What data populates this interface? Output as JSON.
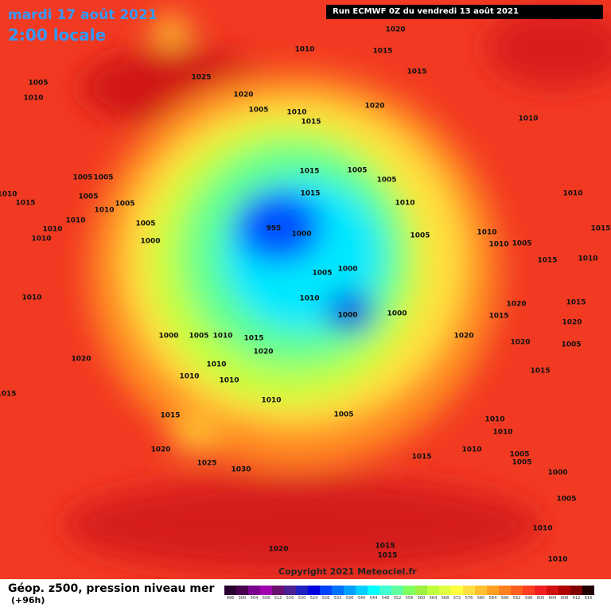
{
  "header": {
    "date": "mardi 17 août 2021",
    "time": "2:00 locale",
    "run": "Run ECMWF 0Z du vendredi 13 août 2021"
  },
  "pressure_labels": [
    "1020",
    "1015",
    "1010",
    "1015",
    "1025",
    "1020",
    "1005",
    "1010",
    "1005",
    "1010",
    "1015",
    "1020",
    "1010",
    "1015",
    "1005",
    "1005",
    "1005",
    "1005",
    "1005",
    "1010",
    "1015",
    "1010",
    "1005",
    "1010",
    "1010",
    "1010",
    "1005",
    "1000",
    "1015",
    "1010",
    "995",
    "1000",
    "1005",
    "1010",
    "1010",
    "1010",
    "1005",
    "1010",
    "1015",
    "1015",
    "1005",
    "1000",
    "1010",
    "1000",
    "1000",
    "1020",
    "1015",
    "1015",
    "1020",
    "1010",
    "1005",
    "1010",
    "1000",
    "1015",
    "1020",
    "1020",
    "1010",
    "1010",
    "1010",
    "1020",
    "1020",
    "1005",
    "1015",
    "1010",
    "1015",
    "1005",
    "1010",
    "1010",
    "1020",
    "1025",
    "1030",
    "1015",
    "1010",
    "1005",
    "1005",
    "1000",
    "1005",
    "1010",
    "1020",
    "1015",
    "1015",
    "1010",
    "1015"
  ],
  "footer": {
    "copyright": "Copyright 2021 Meteociel.fr",
    "legend_title": "Géop. z500, pression niveau mer",
    "lead": "(+96h)"
  },
  "legend": {
    "values": [
      496,
      500,
      504,
      508,
      512,
      516,
      520,
      524,
      528,
      532,
      536,
      540,
      544,
      548,
      552,
      556,
      560,
      564,
      568,
      572,
      576,
      580,
      584,
      588,
      592,
      596,
      600,
      604,
      608,
      612,
      616
    ],
    "colors": [
      "#2a0030",
      "#4a0050",
      "#7a0090",
      "#a000b0",
      "#6a1070",
      "#4a2090",
      "#2020c0",
      "#0000e0",
      "#0040ff",
      "#0070ff",
      "#00a0ff",
      "#00d0ff",
      "#00ffff",
      "#40ffd0",
      "#60ffa0",
      "#80ff60",
      "#a0f040",
      "#c0ff40",
      "#e0ff40",
      "#ffff40",
      "#ffe040",
      "#ffc030",
      "#ffa020",
      "#ff8020",
      "#ff6020",
      "#ff4020",
      "#f02020",
      "#d01010",
      "#b00000",
      "#800000",
      "#200000"
    ]
  }
}
